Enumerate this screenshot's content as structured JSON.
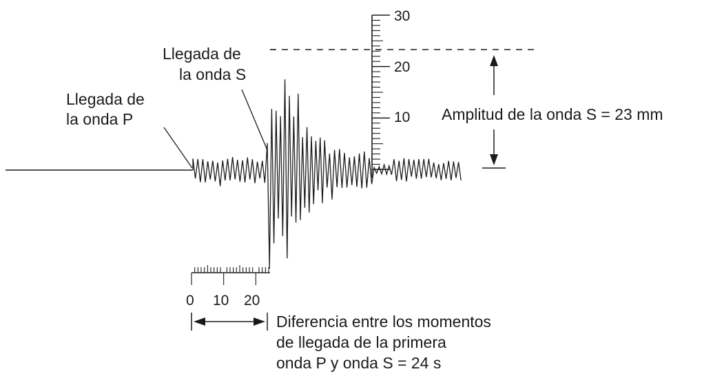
{
  "labels": {
    "p_arrival_line1": "Llegada de",
    "p_arrival_line2": "la onda P",
    "s_arrival_line1": "Llegada de",
    "s_arrival_line2": "la onda S",
    "amplitude": "Amplitud de la onda S = 23 mm",
    "time_diff_line1": "Diferencia entre los momentos",
    "time_diff_line2": "de llegada de la primera",
    "time_diff_line3": "onda P y onda S = 24 s"
  },
  "amplitude_scale": {
    "unit": "mm",
    "tick_labels": [
      "10",
      "20",
      "30"
    ],
    "measured_amplitude": 23
  },
  "time_scale": {
    "unit": "s",
    "tick_labels": [
      "0",
      "10",
      "20"
    ],
    "measured_interval": 24
  }
}
